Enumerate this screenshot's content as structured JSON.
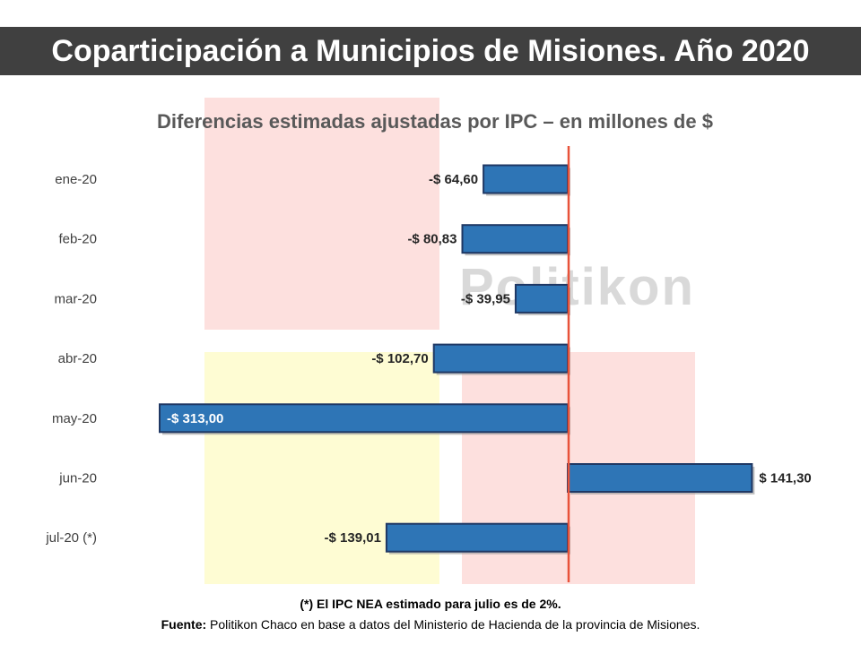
{
  "header": {
    "title": "Coparticipación a Municipios de Misiones. Año 2020"
  },
  "watermark": "Politikon",
  "colors": {
    "bar": "#2e75b6",
    "bar_border": "#1f3864",
    "zero_line": "#e8533a",
    "shade_pink": "#fde0de",
    "shade_yellow": "#fefcd3",
    "title_bar": "#404040"
  },
  "chart_data": {
    "type": "bar",
    "orientation": "horizontal",
    "title": "Diferencias estimadas ajustadas por IPC – en millones de $",
    "categories": [
      "ene-20",
      "feb-20",
      "mar-20",
      "abr-20",
      "may-20",
      "jun-20",
      "jul-20 (*)"
    ],
    "values": [
      -64.6,
      -80.83,
      -39.95,
      -102.7,
      -313.0,
      141.3,
      -139.01
    ],
    "data_labels": [
      "-$ 64,60",
      "-$ 80,83",
      "-$ 39,95",
      "-$ 102,70",
      "-$ 313,00",
      "$ 141,30",
      "-$ 139,01"
    ],
    "xlabel": "",
    "ylabel": "",
    "grid": false,
    "legend": "none"
  },
  "footer": {
    "note": "(*) El IPC NEA estimado para julio es de 2%.",
    "source_label": "Fuente:",
    "source_text": " Politikon Chaco en base a datos del Ministerio de Hacienda de la provincia de Misiones."
  }
}
